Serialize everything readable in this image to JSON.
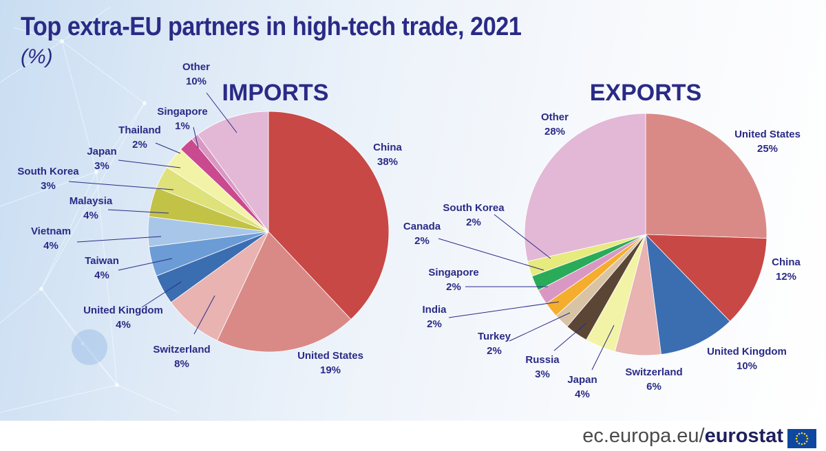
{
  "title": "Top extra-EU partners in high-tech trade, 2021",
  "subtitle": "(%)",
  "footer": {
    "domain": "ec.europa.eu/",
    "brand": "eurostat",
    "flag_icon": "eu-flag-icon"
  },
  "colors": {
    "text": "#2a2a86",
    "leader": "#2a2a86"
  },
  "chart_data": [
    {
      "type": "pie",
      "title": "IMPORTS",
      "unit": "%",
      "start": "12 o'clock",
      "direction": "clockwise",
      "slices": [
        {
          "name": "China",
          "value": 38,
          "color": "#c84846"
        },
        {
          "name": "United States",
          "value": 19,
          "color": "#d98a87"
        },
        {
          "name": "Switzerland",
          "value": 8,
          "color": "#e8b3b1"
        },
        {
          "name": "United Kingdom",
          "value": 4,
          "color": "#3b6db1"
        },
        {
          "name": "Taiwan",
          "value": 4,
          "color": "#6c9cd6"
        },
        {
          "name": "Vietnam",
          "value": 4,
          "color": "#a8c6e8"
        },
        {
          "name": "Malaysia",
          "value": 4,
          "color": "#c2c247"
        },
        {
          "name": "South Korea",
          "value": 3,
          "color": "#dfe17a"
        },
        {
          "name": "Japan",
          "value": 3,
          "color": "#f2f3a6"
        },
        {
          "name": "Thailand",
          "value": 2,
          "color": "#c94a8e"
        },
        {
          "name": "Singapore",
          "value": 1,
          "color": "#d998c4"
        },
        {
          "name": "Other",
          "value": 10,
          "color": "#e2b8d6"
        }
      ]
    },
    {
      "type": "pie",
      "title": "EXPORTS",
      "unit": "%",
      "start": "12 o'clock",
      "direction": "clockwise",
      "slices": [
        {
          "name": "United States",
          "value": 25,
          "color": "#d98a87"
        },
        {
          "name": "China",
          "value": 12,
          "color": "#c84846"
        },
        {
          "name": "United Kingdom",
          "value": 10,
          "color": "#3b6db1"
        },
        {
          "name": "Switzerland",
          "value": 6,
          "color": "#e8b3b1"
        },
        {
          "name": "Japan",
          "value": 4,
          "color": "#f2f3a6"
        },
        {
          "name": "Russia",
          "value": 3,
          "color": "#5b4636"
        },
        {
          "name": "Turkey",
          "value": 2,
          "color": "#d8c3a4"
        },
        {
          "name": "India",
          "value": 2,
          "color": "#f5ad2d"
        },
        {
          "name": "Singapore",
          "value": 2,
          "color": "#d998c4"
        },
        {
          "name": "Canada",
          "value": 2,
          "color": "#2aab5a"
        },
        {
          "name": "South Korea",
          "value": 2,
          "color": "#e7ea7d"
        },
        {
          "name": "Other",
          "value": 28,
          "color": "#e2b8d6"
        }
      ]
    }
  ]
}
